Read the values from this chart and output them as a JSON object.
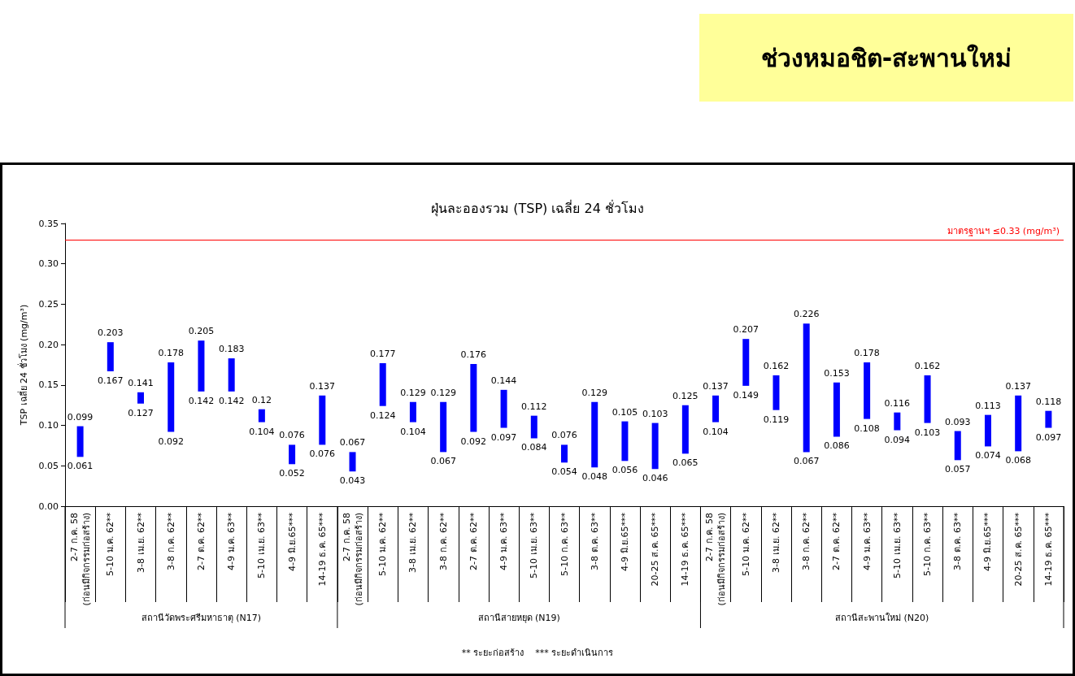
{
  "chart_data": {
    "type": "bar",
    "title": "ฝุ่นละอองรวม (TSP) เฉลี่ย 24 ชั่วโมง",
    "subtitle": "ช่วงหมอชิต-สะพานใหม่",
    "ylabel": "TSP เฉลี่ย 24 ชั่วโมง (mg/m³)",
    "categories": [
      "2-7 ก.ค. 58\n(ก่อนมีกิจกรรมก่อสร้าง)",
      "5-10 ม.ค. 62**",
      "3-8 เม.ย. 62**",
      "3-8 ก.ค. 62**",
      "2-7 ต.ค. 62**",
      "4-9 ม.ค. 63**",
      "5-10 เม.ย. 63**",
      "4-9 มิ.ย.65***",
      "14-19 ธ.ค. 65***",
      "2-7 ก.ค. 58\n(ก่อนมีกิจกรรมก่อสร้าง)",
      "5-10 ม.ค. 62**",
      "3-8 เม.ย. 62**",
      "3-8 ก.ค. 62**",
      "2-7 ต.ค. 62**",
      "4-9 ม.ค. 63**",
      "5-10 เม.ย. 63**",
      "5-10 ก.ค. 63**",
      "3-8 ต.ค. 63**",
      "4-9 มิ.ย.65***",
      "20-25 ส.ค. 65***",
      "14-19 ธ.ค. 65***",
      "2-7 ก.ค. 58\n(ก่อนมีกิจกรรมก่อสร้าง)",
      "5-10 ม.ค. 62**",
      "3-8 เม.ย. 62**",
      "3-8 ก.ค. 62**",
      "2-7 ต.ค. 62**",
      "4-9 ม.ค. 63**",
      "5-10 เม.ย. 63**",
      "5-10 ก.ค. 63**",
      "3-8 ต.ค. 63**",
      "4-9 มิ.ย.65***",
      "20-25 ส.ค. 65***",
      "14-19 ธ.ค. 65***"
    ],
    "series": [
      {
        "color": "#0000ff",
        "base": [
          0.061,
          0.167,
          0.127,
          0.092,
          0.142,
          0.142,
          0.104,
          0.052,
          0.076,
          0.043,
          0.124,
          0.104,
          0.067,
          0.092,
          0.097,
          0.084,
          0.054,
          0.048,
          0.056,
          0.046,
          0.065,
          0.104,
          0.149,
          0.119,
          0.067,
          0.086,
          0.108,
          0.094,
          0.103,
          0.057,
          0.074,
          0.068,
          0.097
        ],
        "values": [
          0.038,
          0.036,
          0.014,
          0.086,
          0.063,
          0.041,
          0.016,
          0.024,
          0.061,
          0.024,
          0.053,
          0.025,
          0.062,
          0.084,
          0.047,
          0.028,
          0.022,
          0.081,
          0.049,
          0.057,
          0.06,
          0.033,
          0.058,
          0.043,
          0.159,
          0.067,
          0.07,
          0.022,
          0.059,
          0.036,
          0.039,
          0.069,
          0.021
        ],
        "value_labels": [
          "0.099",
          "0.203",
          "0.141",
          "0.178",
          "0.205",
          "0.183",
          "0.12",
          "0.076",
          "0.137",
          "0.067",
          "0.177",
          "0.129",
          "0.129",
          "0.176",
          "0.144",
          "0.112",
          "0.076",
          "0.129",
          "0.105",
          "0.103",
          "0.125",
          "0.137",
          "0.207",
          "0.162",
          "0.226",
          "0.153",
          "0.178",
          "0.116",
          "0.162",
          "0.093",
          "0.113",
          "0.137",
          "0.118"
        ]
      }
    ],
    "ylim": [
      0,
      0.35
    ],
    "yticks": [
      {
        "value": 0,
        "label": "0.00"
      },
      {
        "value": 0.05,
        "label": "0.05"
      },
      {
        "value": 0.1,
        "label": "0.10"
      },
      {
        "value": 0.15,
        "label": "0.15"
      },
      {
        "value": 0.2,
        "label": "0.20"
      },
      {
        "value": 0.25,
        "label": "0.25"
      },
      {
        "value": 0.3,
        "label": "0.30"
      },
      {
        "value": 0.35,
        "label": "0.35"
      }
    ],
    "grid": false,
    "ref_lines": [
      {
        "axis": "y",
        "value": 0.33,
        "label": "มาตรฐานฯ ≤0.33 (mg/m³)",
        "color": "#ff0000"
      }
    ],
    "annotations": [
      {
        "text": "0.061",
        "y": 0.061
      },
      {
        "text": "0.167",
        "y": 0.167
      },
      {
        "text": "0.127",
        "y": 0.127
      },
      {
        "text": "0.092",
        "y": 0.092
      },
      {
        "text": "0.142",
        "y": 0.142
      },
      {
        "text": "0.142",
        "y": 0.142
      },
      {
        "text": "0.104",
        "y": 0.104
      },
      {
        "text": "0.052",
        "y": 0.052
      },
      {
        "text": "0.076",
        "y": 0.076
      },
      {
        "text": "0.043",
        "y": 0.043
      },
      {
        "text": "0.124",
        "y": 0.124
      },
      {
        "text": "0.104",
        "y": 0.104
      },
      {
        "text": "0.067",
        "y": 0.067
      },
      {
        "text": "0.092",
        "y": 0.092
      },
      {
        "text": "0.097",
        "y": 0.097
      },
      {
        "text": "0.084",
        "y": 0.084
      },
      {
        "text": "0.054",
        "y": 0.054
      },
      {
        "text": "0.048",
        "y": 0.048
      },
      {
        "text": "0.056",
        "y": 0.056
      },
      {
        "text": "0.046",
        "y": 0.046
      },
      {
        "text": "0.065",
        "y": 0.065
      },
      {
        "text": "0.104",
        "y": 0.104
      },
      {
        "text": "0.149",
        "y": 0.149
      },
      {
        "text": "0.119",
        "y": 0.119
      },
      {
        "text": "0.067",
        "y": 0.067
      },
      {
        "text": "0.086",
        "y": 0.086
      },
      {
        "text": "0.108",
        "y": 0.108
      },
      {
        "text": "0.094",
        "y": 0.094
      },
      {
        "text": "0.103",
        "y": 0.103
      },
      {
        "text": "0.057",
        "y": 0.057
      },
      {
        "text": "0.074",
        "y": 0.074
      },
      {
        "text": "0.068",
        "y": 0.068
      },
      {
        "text": "0.097",
        "y": 0.097
      },
      "สถานีวัดพระศรีมหาธาตุ (N17)",
      "สถานีสายหยุด (N19)",
      "สถานีสะพานใหม่ (N20)",
      "** ระยะก่อสร้าง    *** ระยะดำเนินการ"
    ]
  }
}
